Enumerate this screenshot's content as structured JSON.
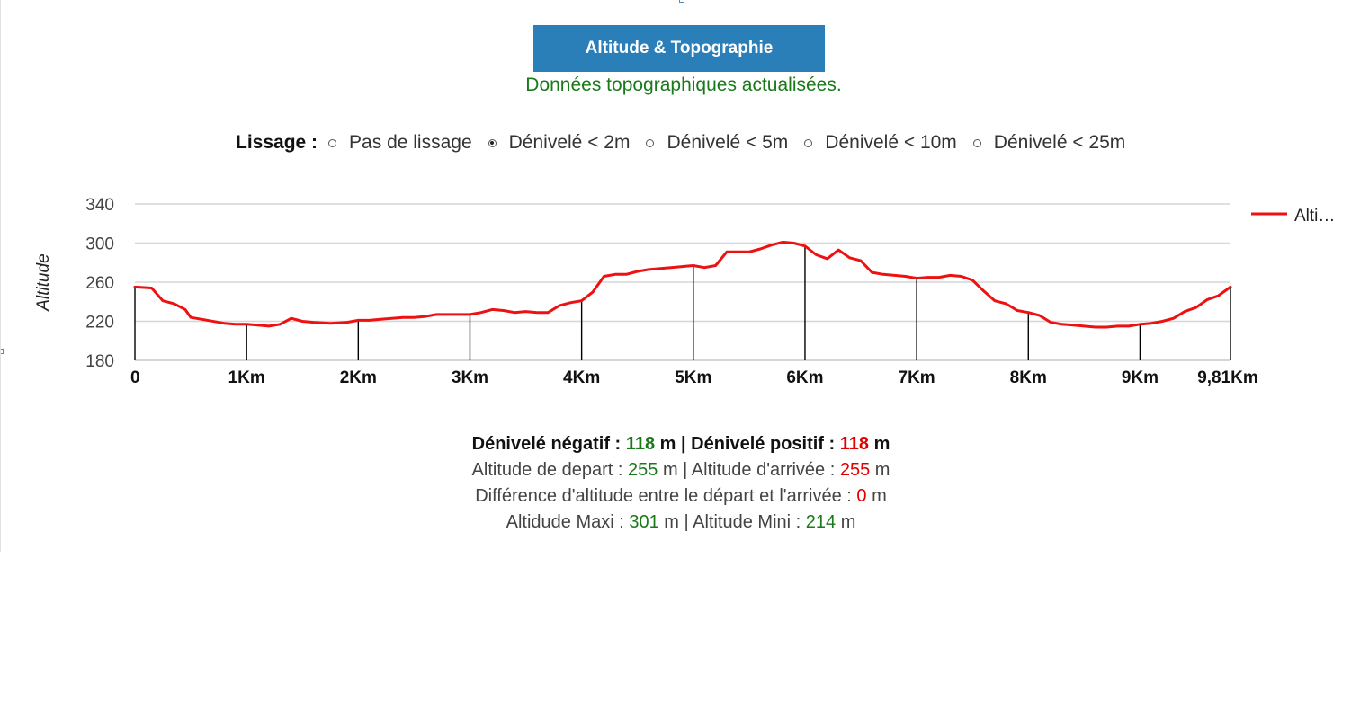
{
  "header": {
    "title": "Altitude & Topographie",
    "subtitle": "Données topographiques actualisées."
  },
  "smoothing": {
    "label": "Lissage :",
    "options": [
      {
        "label": "Pas de lissage",
        "checked": false
      },
      {
        "label": "Dénivelé < 2m",
        "checked": true
      },
      {
        "label": "Dénivelé < 5m",
        "checked": false
      },
      {
        "label": "Dénivelé < 10m",
        "checked": false
      },
      {
        "label": "Dénivelé < 25m",
        "checked": false
      }
    ]
  },
  "chart_data": {
    "type": "line",
    "ylabel": "Altitude",
    "ylim": [
      180,
      340
    ],
    "yticks": [
      180,
      220,
      260,
      300,
      340
    ],
    "xlim": [
      0,
      9.81
    ],
    "xticks": [
      {
        "value": 0,
        "label": "0"
      },
      {
        "value": 1,
        "label": "1Km"
      },
      {
        "value": 2,
        "label": "2Km"
      },
      {
        "value": 3,
        "label": "3Km"
      },
      {
        "value": 4,
        "label": "4Km"
      },
      {
        "value": 5,
        "label": "5Km"
      },
      {
        "value": 6,
        "label": "6Km"
      },
      {
        "value": 7,
        "label": "7Km"
      },
      {
        "value": 8,
        "label": "8Km"
      },
      {
        "value": 9,
        "label": "9Km"
      },
      {
        "value": 9.81,
        "label": "9,81Km"
      }
    ],
    "grid": true,
    "legend": "right",
    "series": [
      {
        "name": "Alti…",
        "color": "#ee1111",
        "x": [
          0,
          0.15,
          0.25,
          0.35,
          0.45,
          0.5,
          0.6,
          0.8,
          0.9,
          1.0,
          1.1,
          1.2,
          1.3,
          1.4,
          1.5,
          1.6,
          1.75,
          1.9,
          2.0,
          2.1,
          2.2,
          2.3,
          2.4,
          2.5,
          2.6,
          2.7,
          2.8,
          2.9,
          3.0,
          3.1,
          3.2,
          3.3,
          3.4,
          3.5,
          3.6,
          3.7,
          3.8,
          3.9,
          4.0,
          4.1,
          4.2,
          4.3,
          4.4,
          4.5,
          4.6,
          4.8,
          4.9,
          5.0,
          5.1,
          5.2,
          5.3,
          5.5,
          5.6,
          5.7,
          5.8,
          5.9,
          6.0,
          6.1,
          6.2,
          6.3,
          6.4,
          6.5,
          6.6,
          6.7,
          6.8,
          6.9,
          7.0,
          7.1,
          7.2,
          7.3,
          7.4,
          7.5,
          7.6,
          7.7,
          7.8,
          7.9,
          8.0,
          8.1,
          8.2,
          8.3,
          8.4,
          8.5,
          8.6,
          8.7,
          8.8,
          8.9,
          9.0,
          9.1,
          9.2,
          9.3,
          9.4,
          9.5,
          9.6,
          9.7,
          9.81
        ],
        "y": [
          255,
          254,
          241,
          238,
          232,
          224,
          222,
          218,
          217,
          217,
          216,
          215,
          217,
          223,
          220,
          219,
          218,
          219,
          221,
          221,
          222,
          223,
          224,
          224,
          225,
          227,
          227,
          227,
          227,
          229,
          232,
          231,
          229,
          230,
          229,
          229,
          236,
          239,
          241,
          250,
          266,
          268,
          268,
          271,
          273,
          275,
          276,
          277,
          275,
          277,
          291,
          291,
          294,
          298,
          301,
          300,
          297,
          288,
          284,
          293,
          285,
          282,
          270,
          268,
          267,
          266,
          264,
          265,
          265,
          267,
          266,
          262,
          251,
          241,
          238,
          231,
          229,
          226,
          219,
          217,
          216,
          215,
          214,
          214,
          215,
          215,
          217,
          218,
          220,
          223,
          230,
          234,
          242,
          246,
          255
        ]
      }
    ],
    "drop_lines_at": [
      0,
      1,
      2,
      3,
      4,
      5,
      6,
      7,
      8,
      9,
      9.81
    ]
  },
  "stats": {
    "neg_label": "Dénivelé négatif :",
    "neg_value": "118",
    "pos_label": "| Dénivelé positif :",
    "pos_value": "118",
    "unit": "m",
    "start_label": "Altitude de depart :",
    "start_value": "255",
    "end_label": "m | Altitude d'arrivée :",
    "end_value": "255",
    "diff_label": "Différence d'altitude entre le départ et l'arrivée :",
    "diff_value": "0",
    "max_label": "Altidude Maxi :",
    "max_value": "301",
    "min_label": "m | Altitude Mini :",
    "min_value": "214"
  },
  "colors": {
    "header_bg": "#2b7fb8",
    "subtitle": "#1a7a1a",
    "line": "#ee1111",
    "positive": "#1a7a1a",
    "negative": "#e00000"
  }
}
